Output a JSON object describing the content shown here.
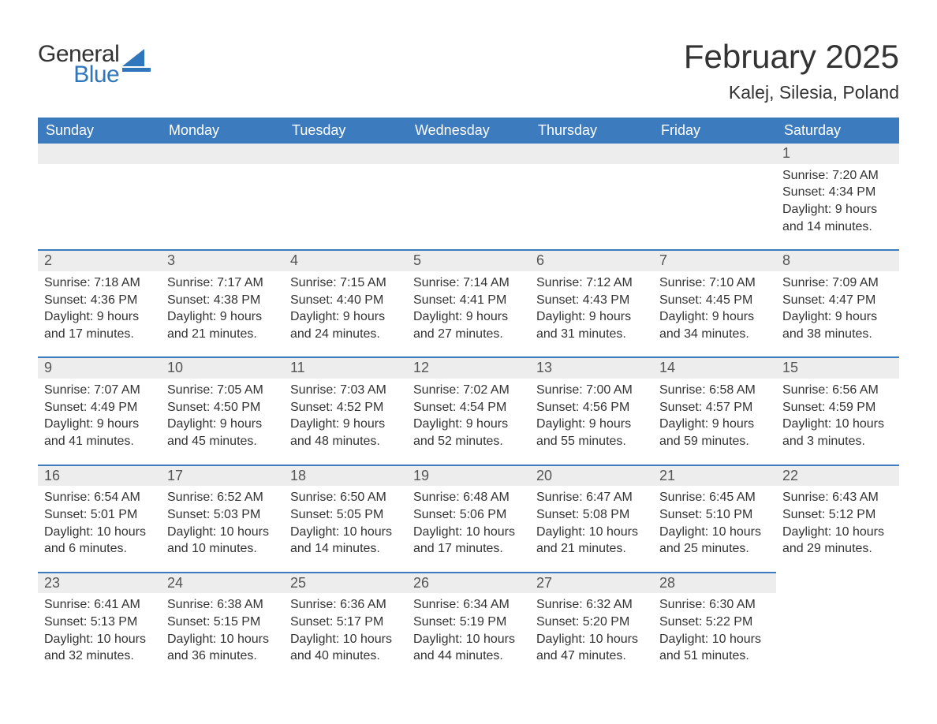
{
  "logo": {
    "text1": "General",
    "text2": "Blue"
  },
  "title": "February 2025",
  "location": "Kalej, Silesia, Poland",
  "colors": {
    "header_bg": "#3d7bbf",
    "header_text": "#ffffff",
    "row_accent": "#3d7bbf",
    "daynum_bg": "#ededed",
    "body_text": "#333333",
    "logo_blue": "#2f77bc",
    "background": "#ffffff"
  },
  "typography": {
    "title_fontsize": 42,
    "location_fontsize": 23,
    "dayheader_fontsize": 18,
    "daynum_fontsize": 18,
    "detail_fontsize": 16,
    "logo_fontsize": 30
  },
  "day_headers": [
    "Sunday",
    "Monday",
    "Tuesday",
    "Wednesday",
    "Thursday",
    "Friday",
    "Saturday"
  ],
  "weeks": [
    [
      null,
      null,
      null,
      null,
      null,
      null,
      {
        "n": "1",
        "sunrise": "7:20 AM",
        "sunset": "4:34 PM",
        "dl1": "9 hours",
        "dl2": "and 14 minutes."
      }
    ],
    [
      {
        "n": "2",
        "sunrise": "7:18 AM",
        "sunset": "4:36 PM",
        "dl1": "9 hours",
        "dl2": "and 17 minutes."
      },
      {
        "n": "3",
        "sunrise": "7:17 AM",
        "sunset": "4:38 PM",
        "dl1": "9 hours",
        "dl2": "and 21 minutes."
      },
      {
        "n": "4",
        "sunrise": "7:15 AM",
        "sunset": "4:40 PM",
        "dl1": "9 hours",
        "dl2": "and 24 minutes."
      },
      {
        "n": "5",
        "sunrise": "7:14 AM",
        "sunset": "4:41 PM",
        "dl1": "9 hours",
        "dl2": "and 27 minutes."
      },
      {
        "n": "6",
        "sunrise": "7:12 AM",
        "sunset": "4:43 PM",
        "dl1": "9 hours",
        "dl2": "and 31 minutes."
      },
      {
        "n": "7",
        "sunrise": "7:10 AM",
        "sunset": "4:45 PM",
        "dl1": "9 hours",
        "dl2": "and 34 minutes."
      },
      {
        "n": "8",
        "sunrise": "7:09 AM",
        "sunset": "4:47 PM",
        "dl1": "9 hours",
        "dl2": "and 38 minutes."
      }
    ],
    [
      {
        "n": "9",
        "sunrise": "7:07 AM",
        "sunset": "4:49 PM",
        "dl1": "9 hours",
        "dl2": "and 41 minutes."
      },
      {
        "n": "10",
        "sunrise": "7:05 AM",
        "sunset": "4:50 PM",
        "dl1": "9 hours",
        "dl2": "and 45 minutes."
      },
      {
        "n": "11",
        "sunrise": "7:03 AM",
        "sunset": "4:52 PM",
        "dl1": "9 hours",
        "dl2": "and 48 minutes."
      },
      {
        "n": "12",
        "sunrise": "7:02 AM",
        "sunset": "4:54 PM",
        "dl1": "9 hours",
        "dl2": "and 52 minutes."
      },
      {
        "n": "13",
        "sunrise": "7:00 AM",
        "sunset": "4:56 PM",
        "dl1": "9 hours",
        "dl2": "and 55 minutes."
      },
      {
        "n": "14",
        "sunrise": "6:58 AM",
        "sunset": "4:57 PM",
        "dl1": "9 hours",
        "dl2": "and 59 minutes."
      },
      {
        "n": "15",
        "sunrise": "6:56 AM",
        "sunset": "4:59 PM",
        "dl1": "10 hours",
        "dl2": "and 3 minutes."
      }
    ],
    [
      {
        "n": "16",
        "sunrise": "6:54 AM",
        "sunset": "5:01 PM",
        "dl1": "10 hours",
        "dl2": "and 6 minutes."
      },
      {
        "n": "17",
        "sunrise": "6:52 AM",
        "sunset": "5:03 PM",
        "dl1": "10 hours",
        "dl2": "and 10 minutes."
      },
      {
        "n": "18",
        "sunrise": "6:50 AM",
        "sunset": "5:05 PM",
        "dl1": "10 hours",
        "dl2": "and 14 minutes."
      },
      {
        "n": "19",
        "sunrise": "6:48 AM",
        "sunset": "5:06 PM",
        "dl1": "10 hours",
        "dl2": "and 17 minutes."
      },
      {
        "n": "20",
        "sunrise": "6:47 AM",
        "sunset": "5:08 PM",
        "dl1": "10 hours",
        "dl2": "and 21 minutes."
      },
      {
        "n": "21",
        "sunrise": "6:45 AM",
        "sunset": "5:10 PM",
        "dl1": "10 hours",
        "dl2": "and 25 minutes."
      },
      {
        "n": "22",
        "sunrise": "6:43 AM",
        "sunset": "5:12 PM",
        "dl1": "10 hours",
        "dl2": "and 29 minutes."
      }
    ],
    [
      {
        "n": "23",
        "sunrise": "6:41 AM",
        "sunset": "5:13 PM",
        "dl1": "10 hours",
        "dl2": "and 32 minutes."
      },
      {
        "n": "24",
        "sunrise": "6:38 AM",
        "sunset": "5:15 PM",
        "dl1": "10 hours",
        "dl2": "and 36 minutes."
      },
      {
        "n": "25",
        "sunrise": "6:36 AM",
        "sunset": "5:17 PM",
        "dl1": "10 hours",
        "dl2": "and 40 minutes."
      },
      {
        "n": "26",
        "sunrise": "6:34 AM",
        "sunset": "5:19 PM",
        "dl1": "10 hours",
        "dl2": "and 44 minutes."
      },
      {
        "n": "27",
        "sunrise": "6:32 AM",
        "sunset": "5:20 PM",
        "dl1": "10 hours",
        "dl2": "and 47 minutes."
      },
      {
        "n": "28",
        "sunrise": "6:30 AM",
        "sunset": "5:22 PM",
        "dl1": "10 hours",
        "dl2": "and 51 minutes."
      },
      null
    ]
  ],
  "labels": {
    "sunrise": "Sunrise:",
    "sunset": "Sunset:",
    "daylight": "Daylight:"
  }
}
